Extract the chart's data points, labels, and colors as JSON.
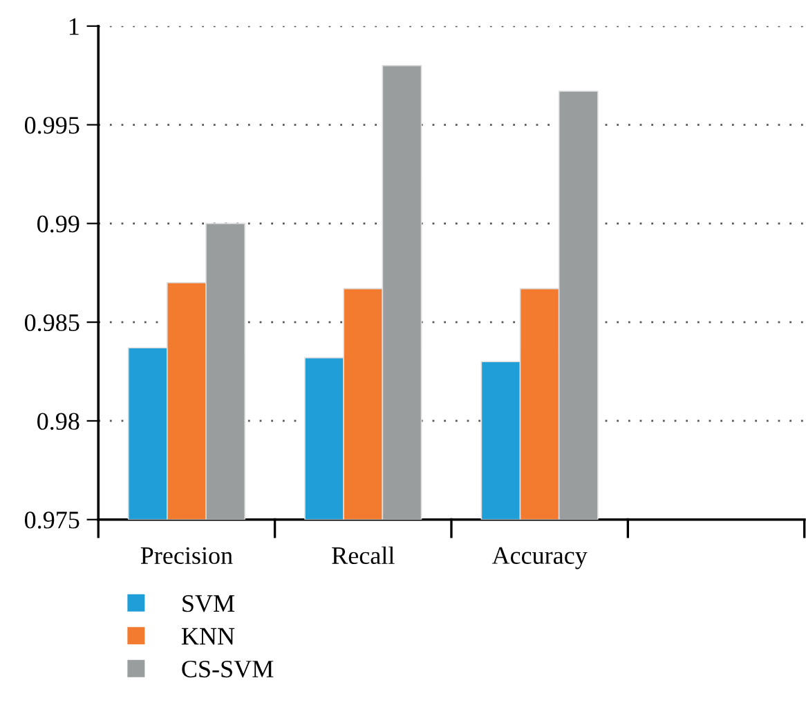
{
  "chart_data": {
    "type": "bar",
    "categories": [
      "Precision",
      "Recall",
      "Accuracy",
      null
    ],
    "series": [
      {
        "name": "SVM",
        "color": "#1f9ed8",
        "values": [
          0.9837,
          0.9832,
          0.983,
          null
        ]
      },
      {
        "name": "KNN",
        "color": "#f37b30",
        "values": [
          0.987,
          0.9867,
          0.9867,
          null
        ]
      },
      {
        "name": "CS-SVM",
        "color": "#9a9d9e",
        "values": [
          0.99,
          0.998,
          0.9967,
          null
        ]
      }
    ],
    "ylim": [
      0.975,
      1
    ],
    "yticks": [
      0.975,
      0.98,
      0.985,
      0.99,
      0.995,
      1
    ],
    "grid": "y",
    "legend": "bottom left"
  }
}
